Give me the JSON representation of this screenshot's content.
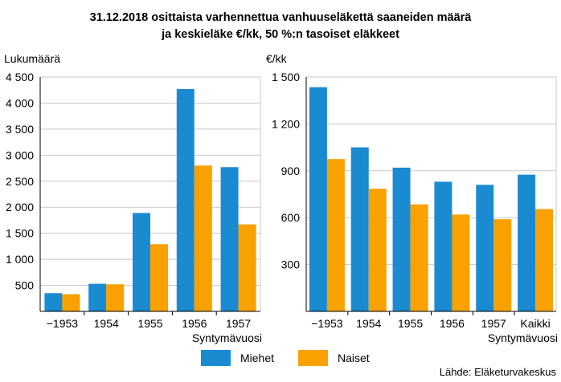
{
  "title_lines": [
    "31.12.2018 osittaista varhennettua vanhuuseläkettä saaneiden määrä",
    "ja keskieläke €/kk, 50 %:n tasoiset eläkkeet"
  ],
  "source": "Lähde: Eläketurvakeskus",
  "colors": {
    "miehet": "#1a8bd1",
    "naiset": "#f8a100",
    "grid": "#c8c8c8",
    "axis": "#000000"
  },
  "legend": [
    {
      "label": "Miehet",
      "color": "#1a8bd1"
    },
    {
      "label": "Naiset",
      "color": "#f8a100"
    }
  ],
  "chart_data": [
    {
      "type": "bar",
      "ylabel": "Lukumäärä",
      "xlabel": "Syntymävuosi",
      "categories": [
        "−1953",
        "1954",
        "1955",
        "1956",
        "1957"
      ],
      "ylim": [
        0,
        4500
      ],
      "yticks": [
        500,
        1000,
        1500,
        2000,
        2500,
        3000,
        3500,
        4000,
        4500
      ],
      "ytick_labels": [
        "500",
        "1 000",
        "1 500",
        "2 000",
        "2 500",
        "3 000",
        "3 500",
        "4 000",
        "4 500"
      ],
      "grid": true,
      "series": [
        {
          "name": "Miehet",
          "values": [
            350,
            530,
            1890,
            4270,
            2770
          ]
        },
        {
          "name": "Naiset",
          "values": [
            330,
            520,
            1290,
            2800,
            1670
          ]
        }
      ]
    },
    {
      "type": "bar",
      "ylabel": "€/kk",
      "xlabel": "Syntymävuosi",
      "categories": [
        "−1953",
        "1954",
        "1955",
        "1956",
        "1957",
        "Kaikki"
      ],
      "ylim": [
        0,
        1500
      ],
      "yticks": [
        300,
        600,
        900,
        1200,
        1500
      ],
      "ytick_labels": [
        "300",
        "600",
        "900",
        "1 200",
        "1 500"
      ],
      "grid": true,
      "series": [
        {
          "name": "Miehet",
          "values": [
            1435,
            1050,
            920,
            830,
            810,
            875
          ]
        },
        {
          "name": "Naiset",
          "values": [
            975,
            785,
            685,
            620,
            590,
            655
          ]
        }
      ]
    }
  ]
}
